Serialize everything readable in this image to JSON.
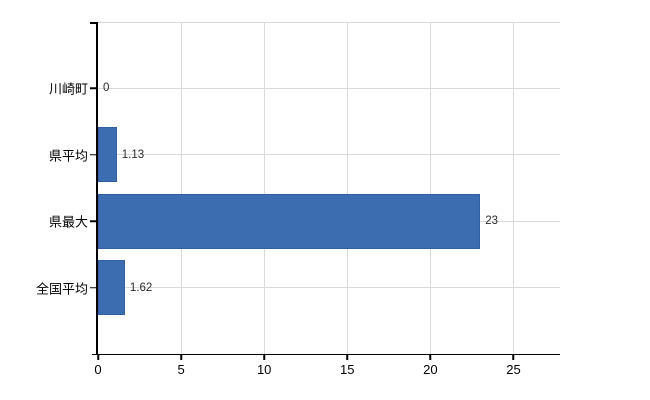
{
  "chart_data": {
    "type": "bar",
    "orientation": "horizontal",
    "title": "",
    "xlabel": "",
    "ylabel": "",
    "categories": [
      "川崎町",
      "県平均",
      "県最大",
      "全国平均"
    ],
    "values": [
      0,
      1.13,
      23,
      1.62
    ],
    "value_labels": [
      "0",
      "1.13",
      "23",
      "1.62"
    ],
    "x_ticks": [
      0,
      5,
      10,
      15,
      20,
      25
    ],
    "x_tick_labels": [
      "0",
      "5",
      "10",
      "15",
      "20",
      "25"
    ],
    "xlim": [
      0,
      27.8
    ],
    "grid": true,
    "legend": false,
    "bar_color": "#3c6db0",
    "grid_color": "#d9d9d9",
    "axis_color": "#000000",
    "background_color": "#ffffff"
  }
}
